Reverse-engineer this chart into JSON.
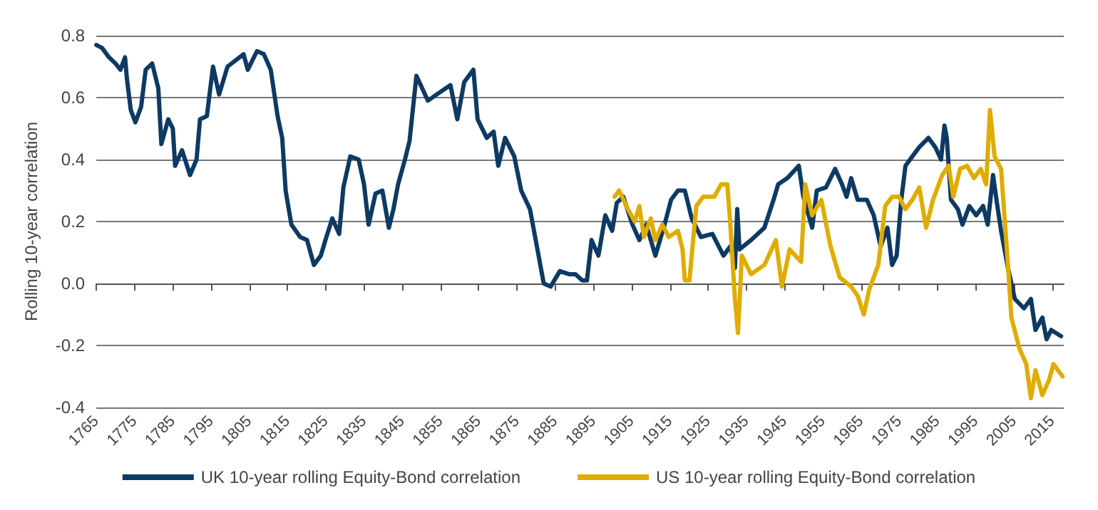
{
  "chart_data": {
    "type": "line",
    "ylabel": "Rolling 10-year correlation",
    "xlim": [
      1765,
      2018
    ],
    "xticks": [
      1765,
      1775,
      1785,
      1795,
      1805,
      1815,
      1825,
      1835,
      1845,
      1855,
      1865,
      1875,
      1885,
      1895,
      1905,
      1915,
      1925,
      1935,
      1945,
      1955,
      1965,
      1975,
      1985,
      1995,
      2005,
      2015
    ],
    "ylim": [
      -0.4,
      0.8
    ],
    "yticks": [
      -0.4,
      -0.2,
      {
        "value": 0,
        "label": "0.0"
      },
      0.2,
      0.4,
      0.6,
      0.8
    ],
    "grid": "y",
    "legend": "bottom",
    "marker": "none",
    "line_style": "solid",
    "series": [
      {
        "name": "UK 10-year rolling Equity-Bond correlation",
        "color": "#0d3a63",
        "x": [
          1765,
          1766.5,
          1768.3,
          1770,
          1771.3,
          1772.5,
          1773,
          1774,
          1775.2,
          1776.7,
          1777.9,
          1779.6,
          1781.2,
          1782,
          1783.8,
          1785,
          1785.6,
          1787.4,
          1789.5,
          1791.2,
          1792.1,
          1793.9,
          1795.5,
          1797.1,
          1799.3,
          1803.5,
          1804.6,
          1807,
          1808.8,
          1810.6,
          1812.4,
          1813.6,
          1814.5,
          1816,
          1818.3,
          1820.1,
          1821.9,
          1823.7,
          1824.9,
          1826.7,
          1828.5,
          1829.6,
          1831.4,
          1833.6,
          1835,
          1836.2,
          1838,
          1839.8,
          1841.5,
          1842.7,
          1843.9,
          1845.7,
          1846.9,
          1848.7,
          1851.7,
          1854,
          1857.6,
          1859.4,
          1861.2,
          1863.6,
          1864.7,
          1867.1,
          1868.9,
          1870.1,
          1871.9,
          1874.3,
          1876.1,
          1878.4,
          1880.2,
          1882,
          1883.8,
          1886.2,
          1888.6,
          1890.3,
          1892.1,
          1893.3,
          1894.5,
          1896.3,
          1898.1,
          1899.9,
          1901.1,
          1902.8,
          1905.2,
          1907,
          1908.8,
          1911.2,
          1913.6,
          1915.3,
          1917.1,
          1918.9,
          1920.7,
          1923.1,
          1926.1,
          1929,
          1930.8,
          1932,
          1932.6,
          1933.2,
          1936.2,
          1939.7,
          1942.1,
          1943.3,
          1945.7,
          1948.7,
          1949.9,
          1952.2,
          1953.4,
          1955.8,
          1958.2,
          1960,
          1961.2,
          1962.4,
          1964.1,
          1966.5,
          1968.3,
          1970.1,
          1971.9,
          1973.1,
          1974.3,
          1975.5,
          1976.6,
          1978.4,
          1980.2,
          1982.6,
          1984.4,
          1985.9,
          1986.8,
          1987.4,
          1988.5,
          1990.3,
          1991.5,
          1993.3,
          1995.1,
          1996.9,
          1998.1,
          1999.5,
          2000.4,
          2001.6,
          2003.4,
          2005.2,
          2007.6,
          2009.4,
          2010.6,
          2012.4,
          2013.5,
          2014.7,
          2017.3
        ],
        "values": [
          0.77,
          0.76,
          0.73,
          0.71,
          0.69,
          0.73,
          0.66,
          0.56,
          0.52,
          0.57,
          0.69,
          0.71,
          0.63,
          0.45,
          0.53,
          0.5,
          0.38,
          0.43,
          0.35,
          0.4,
          0.53,
          0.54,
          0.7,
          0.61,
          0.7,
          0.74,
          0.69,
          0.75,
          0.74,
          0.69,
          0.54,
          0.47,
          0.3,
          0.19,
          0.15,
          0.14,
          0.06,
          0.09,
          0.14,
          0.21,
          0.16,
          0.31,
          0.41,
          0.4,
          0.32,
          0.19,
          0.29,
          0.3,
          0.18,
          0.24,
          0.32,
          0.4,
          0.46,
          0.67,
          0.59,
          0.61,
          0.64,
          0.53,
          0.65,
          0.69,
          0.53,
          0.47,
          0.49,
          0.38,
          0.47,
          0.41,
          0.3,
          0.24,
          0.12,
          0,
          -0.01,
          0.04,
          0.03,
          0.03,
          0.01,
          0.01,
          0.14,
          0.09,
          0.22,
          0.17,
          0.26,
          0.28,
          0.19,
          0.14,
          0.19,
          0.09,
          0.19,
          0.27,
          0.3,
          0.3,
          0.21,
          0.15,
          0.16,
          0.09,
          0.12,
          0.05,
          0.24,
          0.11,
          0.14,
          0.18,
          0.27,
          0.32,
          0.34,
          0.38,
          0.28,
          0.18,
          0.3,
          0.31,
          0.37,
          0.32,
          0.28,
          0.34,
          0.27,
          0.27,
          0.22,
          0.12,
          0.18,
          0.06,
          0.09,
          0.27,
          0.38,
          0.41,
          0.44,
          0.47,
          0.44,
          0.4,
          0.51,
          0.47,
          0.27,
          0.24,
          0.19,
          0.25,
          0.22,
          0.25,
          0.19,
          0.35,
          0.27,
          0.17,
          0.05,
          -0.05,
          -0.08,
          -0.05,
          -0.15,
          -0.11,
          -0.18,
          -0.15,
          -0.17
        ]
      },
      {
        "name": "US 10-year rolling Equity-Bond correlation",
        "color": "#e0ac00",
        "x": [
          1900.5,
          1901.7,
          1904,
          1905.8,
          1907,
          1908.2,
          1910,
          1911.2,
          1913,
          1914.7,
          1917.1,
          1918.3,
          1918.9,
          1920.1,
          1921.9,
          1923.7,
          1926.6,
          1928.4,
          1930,
          1930.8,
          1932,
          1932.8,
          1933.8,
          1936.2,
          1939.7,
          1942.7,
          1944.3,
          1946.3,
          1949.3,
          1950.4,
          1952.2,
          1954.6,
          1957,
          1959.4,
          1962.4,
          1964.1,
          1965.7,
          1967.1,
          1969.5,
          1971.3,
          1973.1,
          1974.9,
          1976.6,
          1978.4,
          1980.2,
          1982,
          1983.8,
          1986.2,
          1987.9,
          1989.1,
          1990.9,
          1992.7,
          1994.5,
          1996.3,
          1997.7,
          1998.7,
          1999.9,
          2001.6,
          2003.4,
          2004.3,
          2006.4,
          2008.2,
          2009.4,
          2010.6,
          2012.4,
          2014.2,
          2015.3,
          2016.5,
          2017.7
        ],
        "values": [
          0.28,
          0.3,
          0.24,
          0.2,
          0.25,
          0.15,
          0.21,
          0.14,
          0.19,
          0.15,
          0.17,
          0.11,
          0.01,
          0.01,
          0.25,
          0.28,
          0.28,
          0.32,
          0.32,
          0.19,
          -0.05,
          -0.16,
          0.09,
          0.03,
          0.06,
          0.14,
          -0.01,
          0.11,
          0.07,
          0.32,
          0.22,
          0.27,
          0.12,
          0.02,
          -0.01,
          -0.04,
          -0.1,
          -0.02,
          0.06,
          0.25,
          0.28,
          0.28,
          0.24,
          0.27,
          0.31,
          0.18,
          0.27,
          0.35,
          0.38,
          0.28,
          0.37,
          0.38,
          0.34,
          0.37,
          0.32,
          0.56,
          0.41,
          0.37,
          0.06,
          -0.11,
          -0.21,
          -0.26,
          -0.37,
          -0.28,
          -0.36,
          -0.31,
          -0.26,
          -0.28,
          -0.3
        ]
      }
    ]
  }
}
